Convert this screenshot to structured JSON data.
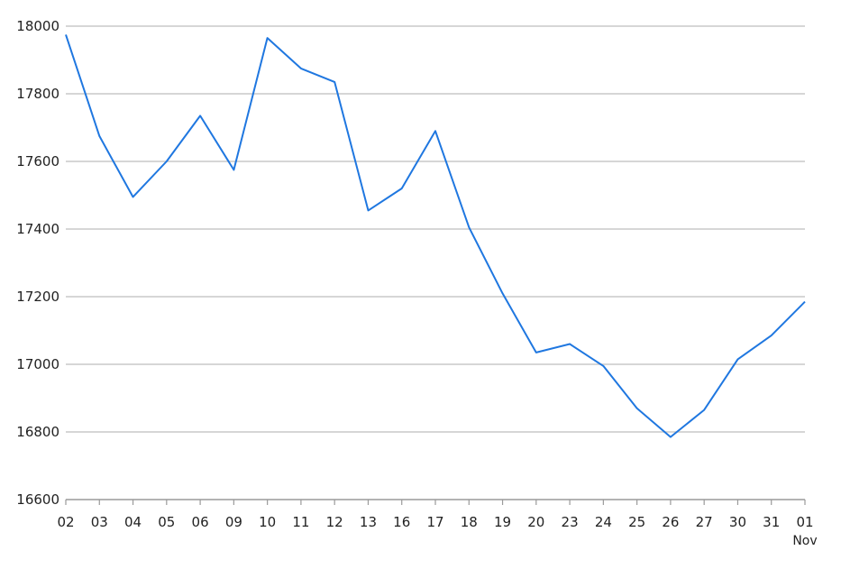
{
  "chart_data": {
    "type": "line",
    "title": "",
    "xlabel": "",
    "ylabel": "",
    "categories": [
      "02",
      "03",
      "04",
      "05",
      "06",
      "09",
      "10",
      "11",
      "12",
      "13",
      "16",
      "17",
      "18",
      "19",
      "20",
      "23",
      "24",
      "25",
      "26",
      "27",
      "30",
      "31",
      "01"
    ],
    "month_label": "Nov",
    "series": [
      {
        "values": [
          17975,
          17675,
          17495,
          17600,
          17735,
          17575,
          17965,
          17875,
          17835,
          17455,
          17520,
          17690,
          17405,
          17210,
          17035,
          17060,
          16995,
          16870,
          16785,
          16865,
          17015,
          17085,
          17185
        ],
        "color": "#1f77e0"
      }
    ],
    "ylim": [
      16600,
      18000
    ],
    "yticks": [
      16600,
      16800,
      17000,
      17200,
      17400,
      17600,
      17800,
      18000
    ],
    "grid": "horizontal",
    "grid_color": "#c8c8c8",
    "axis_color": "#9a9a9a"
  }
}
